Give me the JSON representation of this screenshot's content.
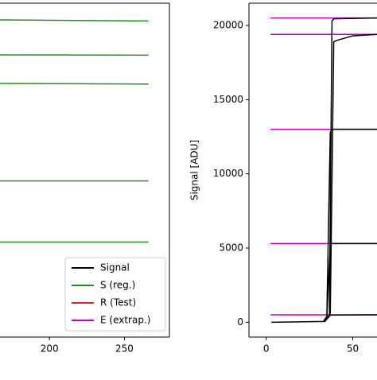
{
  "chart_data": [
    {
      "type": "line",
      "xlim": [
        167,
        280
      ],
      "xticks": [
        200,
        250
      ],
      "ylim": [
        -1000,
        21500
      ],
      "legend_position": "lower right",
      "legend": [
        {
          "name": "Signal",
          "color": "#000000"
        },
        {
          "name": "S (reg.)",
          "color": "#228b22"
        },
        {
          "name": "R (Test)",
          "color": "#d62728"
        },
        {
          "name": "E (extrap.)",
          "color": "#bf00bf"
        }
      ],
      "series": [
        {
          "name": "S (reg.)",
          "color": "#228b22",
          "x": [
            167,
            266,
            null,
            167,
            266,
            null,
            167,
            266,
            null,
            167,
            266,
            null,
            167,
            266
          ],
          "values": [
            20374,
            20300,
            null,
            18021,
            18000,
            null,
            16096,
            16050,
            null,
            9519,
            9519,
            null,
            5401,
            5401
          ]
        }
      ]
    },
    {
      "type": "line",
      "ylabel": "Signal [ADU]",
      "xlim": [
        -10,
        64
      ],
      "xticks": [
        0,
        50
      ],
      "ylim": [
        -1000,
        21500
      ],
      "yticks": [
        0,
        5000,
        10000,
        15000,
        20000
      ],
      "series": [
        {
          "name": "E (extrap.)",
          "color": "#bf00bf",
          "x": [
            2.5,
            64,
            null,
            2.5,
            64,
            null,
            2.5,
            64,
            null,
            2.5,
            64,
            null,
            2.5,
            64
          ],
          "values": [
            20500,
            20500,
            null,
            19400,
            19400,
            null,
            13000,
            13000,
            null,
            5300,
            5300,
            null,
            500,
            500
          ]
        },
        {
          "name": "Signal",
          "color": "#000000",
          "x": [
            3,
            34,
            36.5,
            38,
            39,
            64,
            null,
            3,
            34,
            37,
            39,
            41,
            50,
            64,
            null,
            3,
            33,
            35,
            37,
            38,
            64,
            null,
            3,
            33,
            35,
            37,
            38,
            64,
            null,
            3,
            33,
            35,
            37,
            64
          ],
          "values": [
            0,
            50,
            500,
            20300,
            20450,
            20500,
            null,
            0,
            50,
            600,
            18900,
            19000,
            19300,
            19400,
            null,
            0,
            50,
            400,
            12800,
            13000,
            13000,
            null,
            0,
            50,
            300,
            5200,
            5300,
            5300,
            null,
            0,
            50,
            200,
            480,
            500
          ]
        }
      ]
    }
  ]
}
